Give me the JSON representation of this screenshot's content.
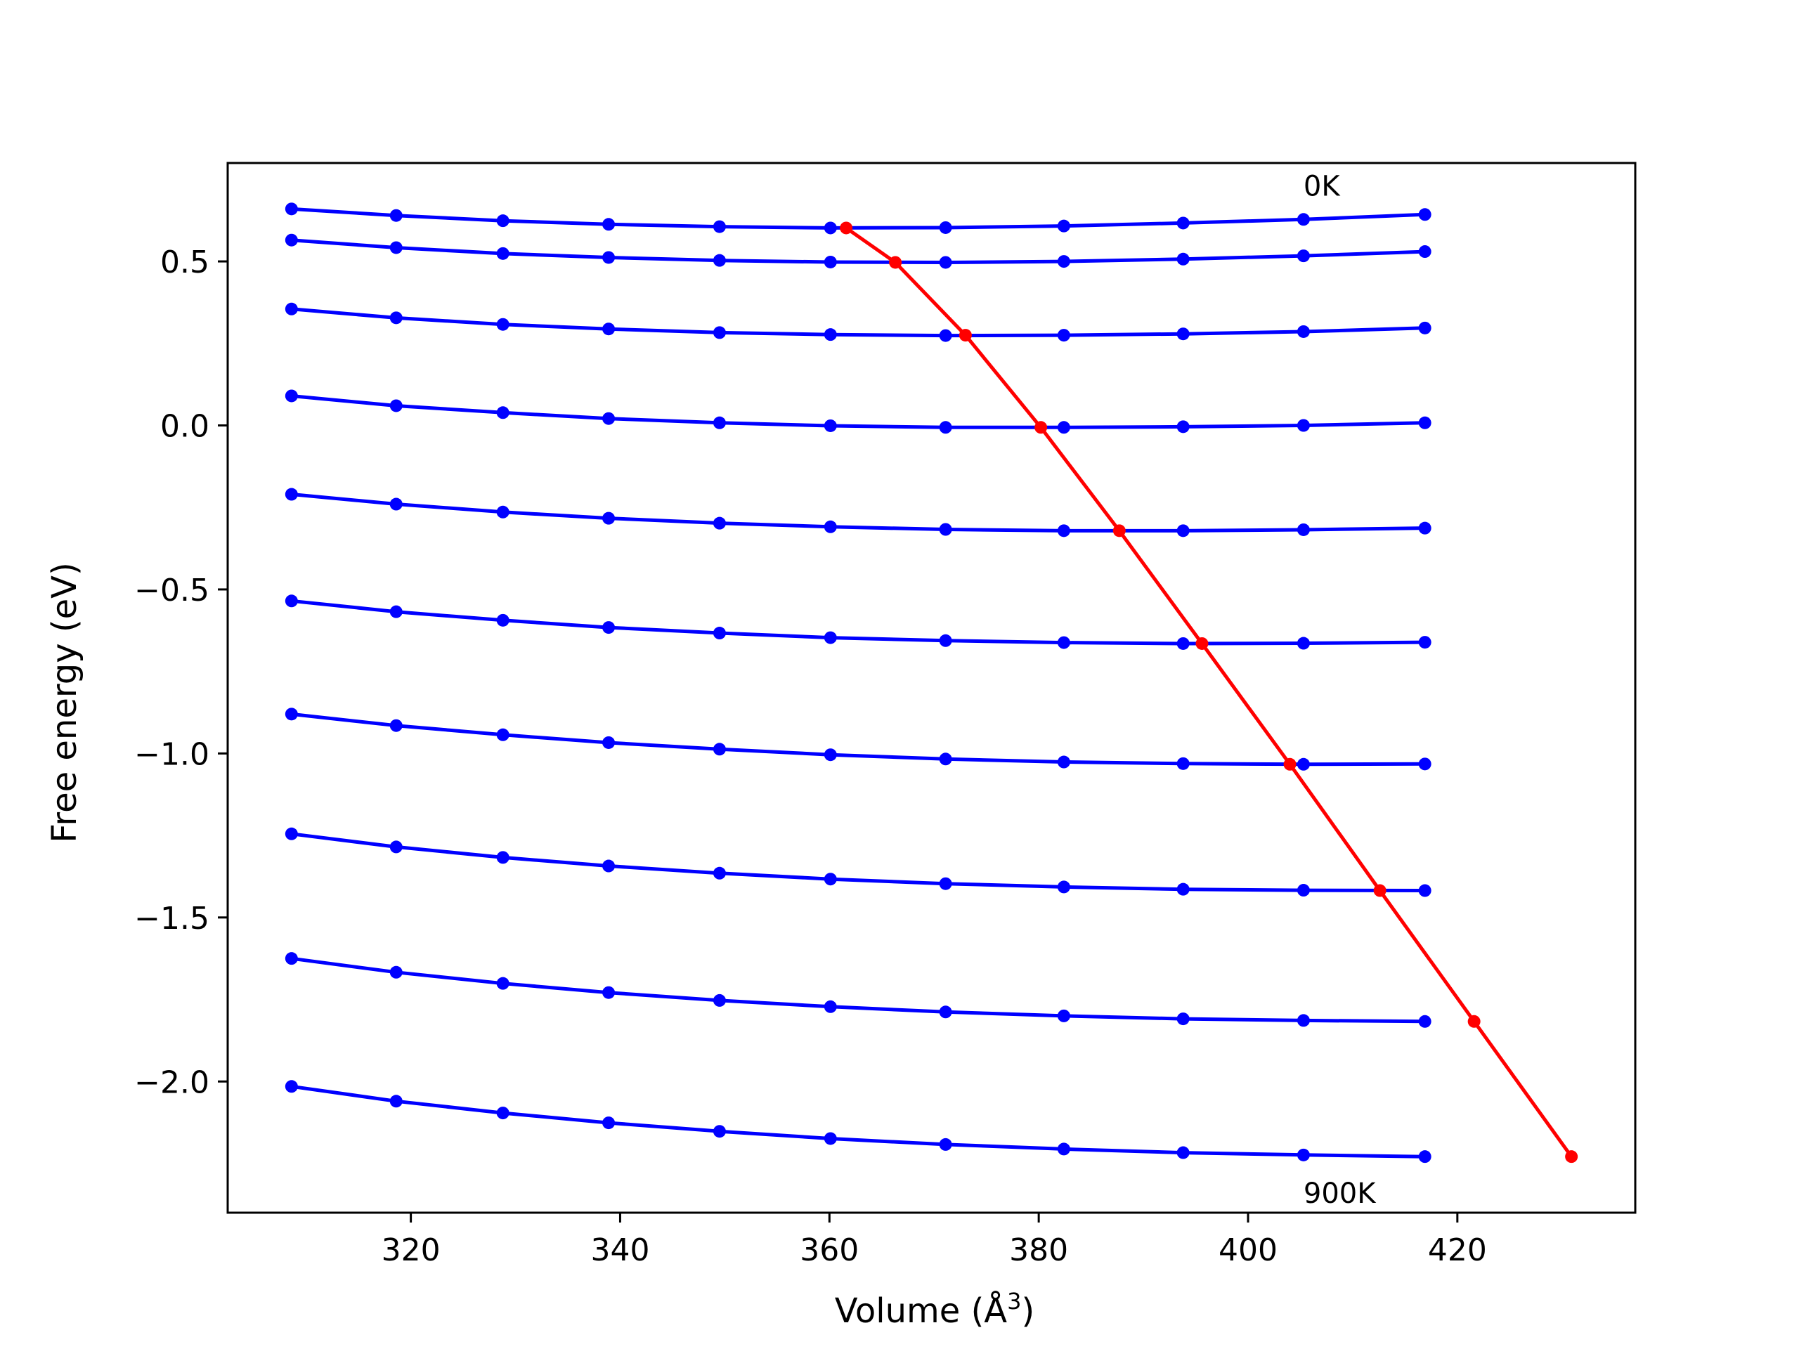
{
  "chart_data": {
    "type": "line",
    "xlabel": "Volume (Å",
    "xlabel_sup": "3",
    "xlabel_end": ")",
    "ylabel": "Free energy (eV)",
    "xlim": [
      302.5,
      437.0
    ],
    "ylim": [
      -2.4,
      0.8
    ],
    "x_ticks": [
      320,
      340,
      360,
      380,
      400,
      420
    ],
    "x_tick_labels": [
      "320",
      "340",
      "360",
      "380",
      "400",
      "420"
    ],
    "y_ticks": [
      -2.0,
      -1.5,
      -1.0,
      -0.5,
      0.0,
      0.5
    ],
    "y_tick_labels": [
      "−2.0",
      "−1.5",
      "−1.0",
      "−0.5",
      "0.0",
      "0.5"
    ],
    "grid": false,
    "colors": {
      "curves": "#0000ff",
      "minimum_line": "#ff0000",
      "axes": "#000000"
    },
    "x": [
      308.6,
      318.6,
      328.8,
      338.9,
      349.5,
      360.1,
      371.1,
      382.4,
      393.8,
      405.3,
      416.9
    ],
    "series": [
      {
        "values": [
          0.66,
          0.64,
          0.624,
          0.613,
          0.606,
          0.602,
          0.603,
          0.608,
          0.617,
          0.628,
          0.643
        ]
      },
      {
        "values": [
          0.565,
          0.542,
          0.524,
          0.512,
          0.503,
          0.498,
          0.497,
          0.5,
          0.507,
          0.517,
          0.53
        ]
      },
      {
        "values": [
          0.355,
          0.328,
          0.308,
          0.294,
          0.283,
          0.277,
          0.274,
          0.275,
          0.279,
          0.286,
          0.297
        ]
      },
      {
        "values": [
          0.09,
          0.06,
          0.039,
          0.021,
          0.008,
          -0.001,
          -0.006,
          -0.006,
          -0.004,
          0.0,
          0.008
        ]
      },
      {
        "values": [
          -0.21,
          -0.24,
          -0.264,
          -0.283,
          -0.298,
          -0.309,
          -0.317,
          -0.321,
          -0.321,
          -0.318,
          -0.313
        ]
      },
      {
        "values": [
          -0.535,
          -0.568,
          -0.594,
          -0.616,
          -0.633,
          -0.647,
          -0.656,
          -0.662,
          -0.665,
          -0.664,
          -0.661
        ]
      },
      {
        "values": [
          -0.88,
          -0.915,
          -0.943,
          -0.967,
          -0.987,
          -1.004,
          -1.017,
          -1.026,
          -1.031,
          -1.033,
          -1.032
        ]
      },
      {
        "values": [
          -1.245,
          -1.285,
          -1.317,
          -1.343,
          -1.365,
          -1.383,
          -1.397,
          -1.407,
          -1.414,
          -1.417,
          -1.418
        ]
      },
      {
        "values": [
          -1.625,
          -1.667,
          -1.701,
          -1.729,
          -1.753,
          -1.772,
          -1.788,
          -1.8,
          -1.809,
          -1.814,
          -1.817
        ]
      },
      {
        "values": [
          -2.015,
          -2.06,
          -2.096,
          -2.126,
          -2.152,
          -2.174,
          -2.192,
          -2.206,
          -2.217,
          -2.224,
          -2.229
        ]
      }
    ],
    "minimum_line": {
      "x": [
        361.6,
        366.3,
        373.0,
        380.2,
        387.7,
        395.6,
        404.0,
        412.6,
        421.6,
        430.9
      ],
      "y": [
        0.602,
        0.497,
        0.275,
        -0.006,
        -0.321,
        -0.665,
        -1.033,
        -1.418,
        -1.817,
        -2.229
      ]
    },
    "annotations": [
      {
        "text": "0K",
        "x": 405.3,
        "y": 0.7
      },
      {
        "text": "900K",
        "x": 405.3,
        "y": -2.37
      }
    ]
  }
}
